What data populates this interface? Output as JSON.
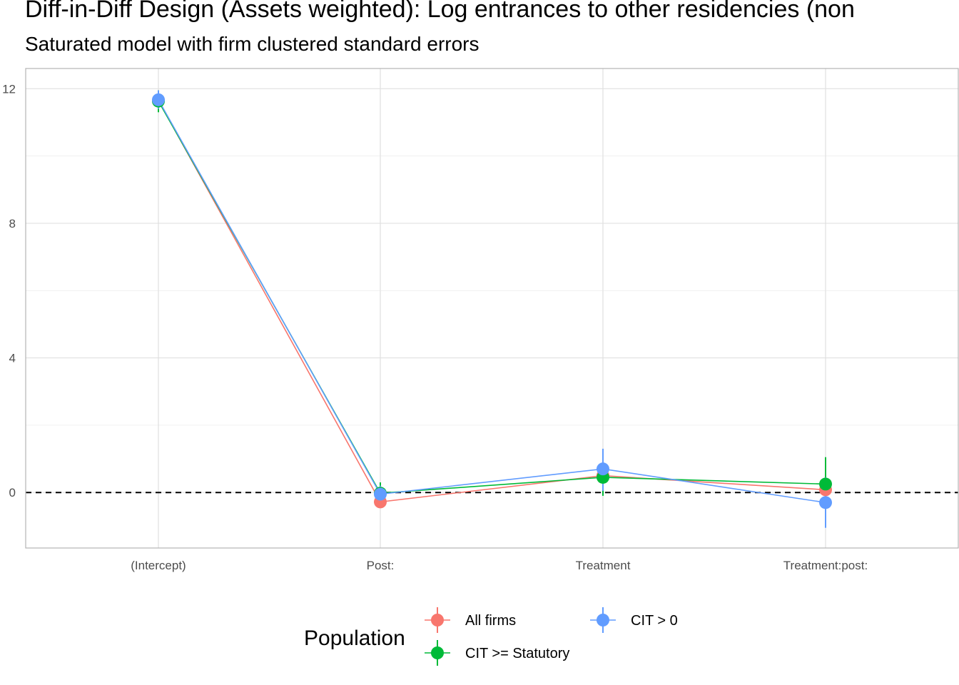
{
  "chart_data": {
    "type": "scatter",
    "title": "Diff-in-Diff Design (Assets weighted): Log entrances to other residencies (non",
    "subtitle": "Saturated model with firm clustered standard errors",
    "categories": [
      "(Intercept)",
      "Post:",
      "Treatment",
      "Treatment:post:"
    ],
    "y_ticks": [
      0,
      4,
      8,
      12
    ],
    "ylim": [
      -1.65,
      12.6
    ],
    "reference_line": 0,
    "grid": true,
    "legend": {
      "title": "Population",
      "position": "bottom",
      "entries": [
        "All firms",
        "CIT >= Statutory",
        "CIT > 0"
      ]
    },
    "series": [
      {
        "name": "All firms",
        "color": "#F8766D",
        "values": [
          11.65,
          -0.28,
          0.5,
          0.08
        ],
        "lower": [
          11.35,
          -0.45,
          0.2,
          -0.25
        ],
        "upper": [
          11.95,
          -0.1,
          0.8,
          0.4
        ]
      },
      {
        "name": "CIT >= Statutory",
        "color": "#00BA38",
        "values": [
          11.63,
          -0.02,
          0.45,
          0.25
        ],
        "lower": [
          11.3,
          -0.3,
          -0.1,
          -0.5
        ],
        "upper": [
          11.95,
          0.3,
          1.0,
          1.05
        ]
      },
      {
        "name": "CIT > 0",
        "color": "#619CFF",
        "values": [
          11.67,
          -0.05,
          0.7,
          -0.3
        ],
        "lower": [
          11.4,
          -0.3,
          0.05,
          -1.05
        ],
        "upper": [
          11.95,
          0.2,
          1.3,
          0.45
        ]
      }
    ]
  }
}
